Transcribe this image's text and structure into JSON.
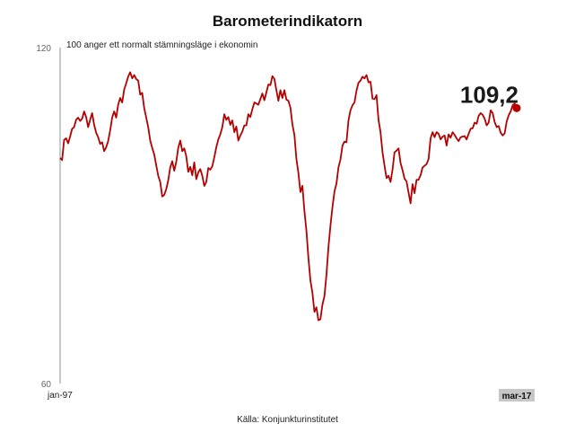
{
  "chart_data": {
    "type": "line",
    "title": "Barometerindikatorn",
    "subtitle": "100 anger ett normalt stämningsläge i ekonomin",
    "source": "Källa: Konjunkturinstitutet",
    "ylim": [
      60,
      120
    ],
    "yticks": [
      "120",
      "60"
    ],
    "x_start_label": "jan-97",
    "x_end_label": "mar-17",
    "last_value_label": "109,2",
    "series_color": "#b50000",
    "axis_color": "#8a9aa0",
    "grid": false,
    "series": [
      {
        "values": [
          100.3,
          99.9,
          103.5,
          103.8,
          102.9,
          104.1,
          105.5,
          105.8,
          107.1,
          107.5,
          106.9,
          107.3,
          108.6,
          107.6,
          105.8,
          107.1,
          108.3,
          106.2,
          104.8,
          104.0,
          102.8,
          103.1,
          101.5,
          102.2,
          103.3,
          105.2,
          107.5,
          108.6,
          107.5,
          109.8,
          111.0,
          110.2,
          112.5,
          113.6,
          114.8,
          115.6,
          114.5,
          115.1,
          114.4,
          114.1,
          111.6,
          111.9,
          109.2,
          107.5,
          105.8,
          103.4,
          102.1,
          100.9,
          99.0,
          97.1,
          96.0,
          93.4,
          93.7,
          94.7,
          96.3,
          98.6,
          99.7,
          98.0,
          99.6,
          102.1,
          103.4,
          101.5,
          102.0,
          100.6,
          97.8,
          98.7,
          97.2,
          99.5,
          96.5,
          97.7,
          98.3,
          97.1,
          95.3,
          96.0,
          98.5,
          98.2,
          98.8,
          100.4,
          102.2,
          103.6,
          104.5,
          105.8,
          108.1,
          107.1,
          107.6,
          106.2,
          107.0,
          104.9,
          105.9,
          103.4,
          104.3,
          105.0,
          106.1,
          106.1,
          108.1,
          107.6,
          109.0,
          110.2,
          110.0,
          109.8,
          110.8,
          111.8,
          110.6,
          112.0,
          113.4,
          113.3,
          114.9,
          114.4,
          112.4,
          110.5,
          112.4,
          111.0,
          112.4,
          110.7,
          110.5,
          109.3,
          106.3,
          104.4,
          100.1,
          97.6,
          94.2,
          95.3,
          90.8,
          87.3,
          82.4,
          78.4,
          76.2,
          72.8,
          73.6,
          71.3,
          71.5,
          74.1,
          75.6,
          79.4,
          84.4,
          88.2,
          91.5,
          94.3,
          95.7,
          98.6,
          100.0,
          102.5,
          103.2,
          103.1,
          107.0,
          108.8,
          109.7,
          110.2,
          112.3,
          113.7,
          114.1,
          114.8,
          114.5,
          115.1,
          113.8,
          113.9,
          110.9,
          110.8,
          111.5,
          107.1,
          104.9,
          101.3,
          98.9,
          96.7,
          97.1,
          96.0,
          98.2,
          101.3,
          101.6,
          102.0,
          99.4,
          98.1,
          96.6,
          96.1,
          94.1,
          92.2,
          95.6,
          94.0,
          96.4,
          96.4,
          97.2,
          98.6,
          98.9,
          99.2,
          100.1,
          103.8,
          104.9,
          104.0,
          104.9,
          104.6,
          103.6,
          104.1,
          104.3,
          102.5,
          104.5,
          103.9,
          104.9,
          104.4,
          103.8,
          103.3,
          104.0,
          104.1,
          104.2,
          103.6,
          104.6,
          105.5,
          105.6,
          106.6,
          106.4,
          107.8,
          108.3,
          108.0,
          107.3,
          106.1,
          106.6,
          108.8,
          108.3,
          106.7,
          105.8,
          106.0,
          104.8,
          104.3,
          104.7,
          106.8,
          107.9,
          108.6,
          109.7,
          110.0,
          109.2
        ]
      }
    ]
  }
}
